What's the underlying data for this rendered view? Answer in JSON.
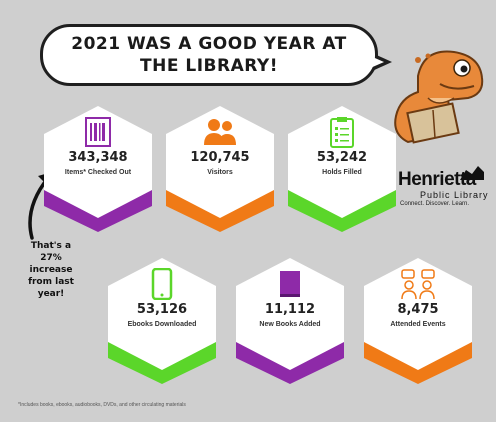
{
  "header": {
    "title": "2021 WAS A GOOD YEAR AT THE LIBRARY!"
  },
  "stats": [
    {
      "value": "343,348",
      "label": "Items* Checked Out",
      "icon": "barcode-icon",
      "color": "#8e2aa8"
    },
    {
      "value": "120,745",
      "label": "Visitors",
      "icon": "people-icon",
      "color": "#f07a16"
    },
    {
      "value": "53,242",
      "label": "Holds Filled",
      "icon": "checklist-icon",
      "color": "#5bd62a"
    },
    {
      "value": "53,126",
      "label": "Ebooks Downloaded",
      "icon": "tablet-icon",
      "color": "#5bd62a"
    },
    {
      "value": "11,112",
      "label": "New Books Added",
      "icon": "book-icon",
      "color": "#8e2aa8"
    },
    {
      "value": "8,475",
      "label": "Attended Events",
      "icon": "group-icon",
      "color": "#f07a16"
    }
  ],
  "callout": {
    "text": "That's a 27% increase from last year!"
  },
  "logo": {
    "name": "Henrietta",
    "subtitle": "Public Library",
    "tagline": "Connect. Discover. Learn."
  },
  "footnote": "*Includes books, ebooks, audiobooks, DVDs, and other circulating materials"
}
